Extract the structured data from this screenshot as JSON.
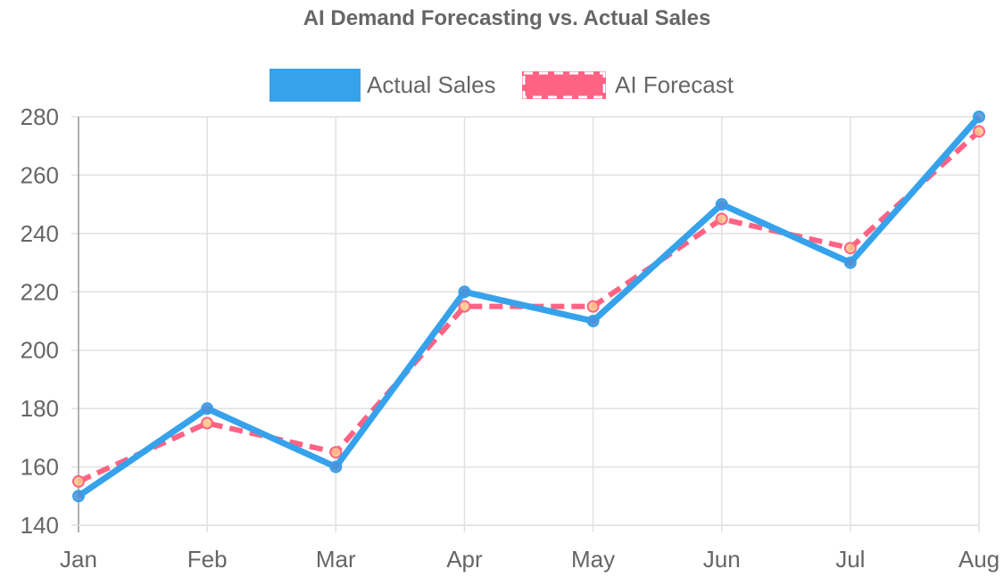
{
  "chart_data": {
    "type": "line",
    "title": "AI Demand Forecasting vs. Actual Sales",
    "categories": [
      "Jan",
      "Feb",
      "Mar",
      "Apr",
      "May",
      "Jun",
      "Jul",
      "Aug"
    ],
    "series": [
      {
        "name": "Actual Sales",
        "values": [
          150,
          180,
          160,
          220,
          210,
          250,
          230,
          280
        ],
        "color": "#36a2eb",
        "point_color": "#4e8fd6",
        "dashed": false
      },
      {
        "name": "AI Forecast",
        "values": [
          155,
          175,
          165,
          215,
          215,
          245,
          235,
          275
        ],
        "color": "#ff6384",
        "point_color": "#ffc58a",
        "dashed": true
      }
    ],
    "xlabel": "",
    "ylabel": "",
    "ylim": [
      140,
      280
    ],
    "yticks": [
      "140",
      "160",
      "180",
      "200",
      "220",
      "240",
      "260",
      "280"
    ],
    "grid": true,
    "legend_position": "top"
  }
}
